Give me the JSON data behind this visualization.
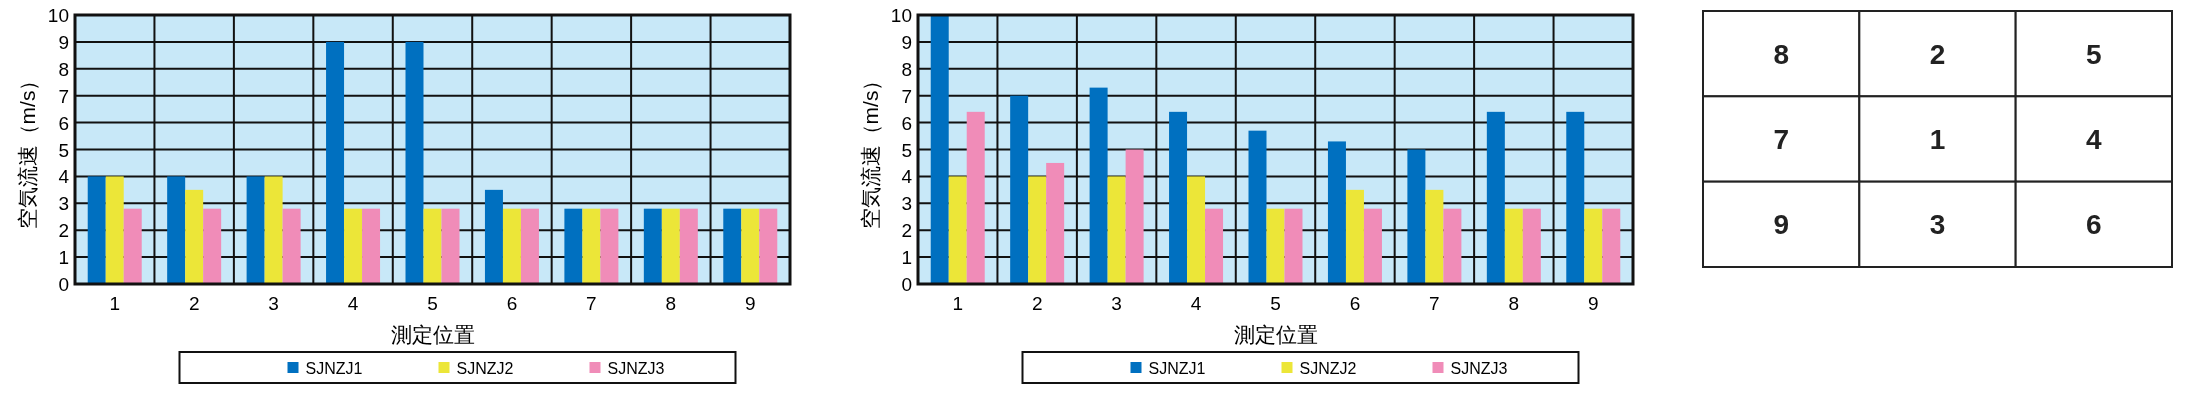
{
  "chart_data": [
    {
      "type": "bar",
      "xlabel": "測定位置",
      "ylabel": "空気流速（m/s）",
      "categories": [
        "1",
        "2",
        "3",
        "4",
        "5",
        "6",
        "7",
        "8",
        "9"
      ],
      "ylim": [
        0,
        10
      ],
      "yticks": [
        0,
        1,
        2,
        3,
        4,
        5,
        6,
        7,
        8,
        9,
        10
      ],
      "grid": true,
      "legend": "bottom",
      "series": [
        {
          "name": "SJNZJ1",
          "color": "#0070c0",
          "values": [
            4,
            4,
            4,
            9,
            9,
            3.5,
            2.8,
            2.8,
            2.8
          ]
        },
        {
          "name": "SJNZJ2",
          "color": "#ece638",
          "values": [
            4,
            3.5,
            4,
            2.8,
            2.8,
            2.8,
            2.8,
            2.8,
            2.8
          ]
        },
        {
          "name": "SJNZJ3",
          "color": "#f08cb8",
          "values": [
            2.8,
            2.8,
            2.8,
            2.8,
            2.8,
            2.8,
            2.8,
            2.8,
            2.8
          ]
        }
      ]
    },
    {
      "type": "bar",
      "xlabel": "測定位置",
      "ylabel": "空気流速（m/s）",
      "categories": [
        "1",
        "2",
        "3",
        "4",
        "5",
        "6",
        "7",
        "8",
        "9"
      ],
      "ylim": [
        0,
        10
      ],
      "yticks": [
        0,
        1,
        2,
        3,
        4,
        5,
        6,
        7,
        8,
        9,
        10
      ],
      "grid": true,
      "legend": "bottom",
      "series": [
        {
          "name": "SJNZJ1",
          "color": "#0070c0",
          "values": [
            10,
            7,
            7.3,
            6.4,
            5.7,
            5.3,
            5,
            6.4,
            6.4
          ]
        },
        {
          "name": "SJNZJ2",
          "color": "#ece638",
          "values": [
            4,
            4,
            4,
            4,
            2.8,
            3.5,
            3.5,
            2.8,
            2.8
          ]
        },
        {
          "name": "SJNZJ3",
          "color": "#f08cb8",
          "values": [
            6.4,
            4.5,
            5,
            2.8,
            2.8,
            2.8,
            2.8,
            2.8,
            2.8
          ]
        }
      ]
    },
    {
      "type": "other",
      "annotations": [
        "8",
        "2",
        "5",
        "7",
        "1",
        "4",
        "9",
        "3",
        "6"
      ]
    }
  ]
}
